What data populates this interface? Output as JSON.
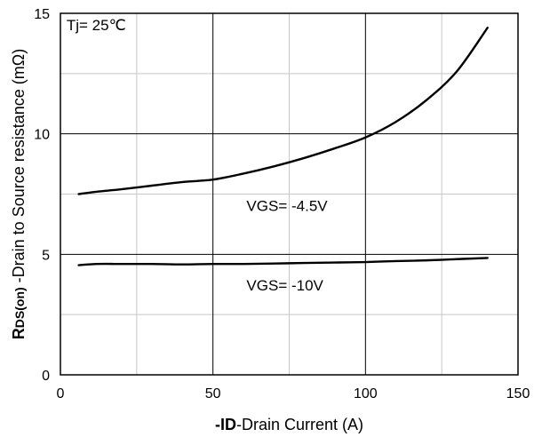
{
  "chart_data": {
    "type": "line",
    "xlabel": {
      "bold": "-ID",
      "rest": "-Drain Current (A)"
    },
    "ylabel": {
      "bold_main": "R",
      "bold_sub": "DS(on)",
      "rest": " -Drain to Source resistance (mΩ)"
    },
    "xlim": [
      0,
      150
    ],
    "ylim": [
      0,
      15
    ],
    "x_ticks": [
      0,
      50,
      100,
      150
    ],
    "y_ticks": [
      0,
      5,
      10,
      15
    ],
    "x_minor_step": 25,
    "y_minor_step": 2.5,
    "grid": true,
    "annotations": [
      {
        "text": "Tj= 25℃",
        "x": 2,
        "y": 14.3
      },
      {
        "text": "VGS= -4.5V",
        "x": 61,
        "y": 6.8
      },
      {
        "text": "VGS= -10V",
        "x": 61,
        "y": 3.5
      }
    ],
    "series": [
      {
        "x": [
          6,
          12,
          20,
          30,
          40,
          50,
          60,
          70,
          80,
          90,
          100,
          110,
          120,
          130,
          140
        ],
        "y": [
          7.5,
          7.6,
          7.7,
          7.85,
          8.0,
          8.1,
          8.35,
          8.65,
          9.0,
          9.4,
          9.85,
          10.5,
          11.4,
          12.6,
          14.4
        ]
      },
      {
        "x": [
          6,
          12,
          20,
          30,
          40,
          50,
          60,
          70,
          80,
          90,
          100,
          110,
          120,
          130,
          140
        ],
        "y": [
          4.55,
          4.6,
          4.6,
          4.6,
          4.58,
          4.6,
          4.6,
          4.62,
          4.64,
          4.66,
          4.68,
          4.72,
          4.75,
          4.8,
          4.85
        ]
      }
    ]
  }
}
